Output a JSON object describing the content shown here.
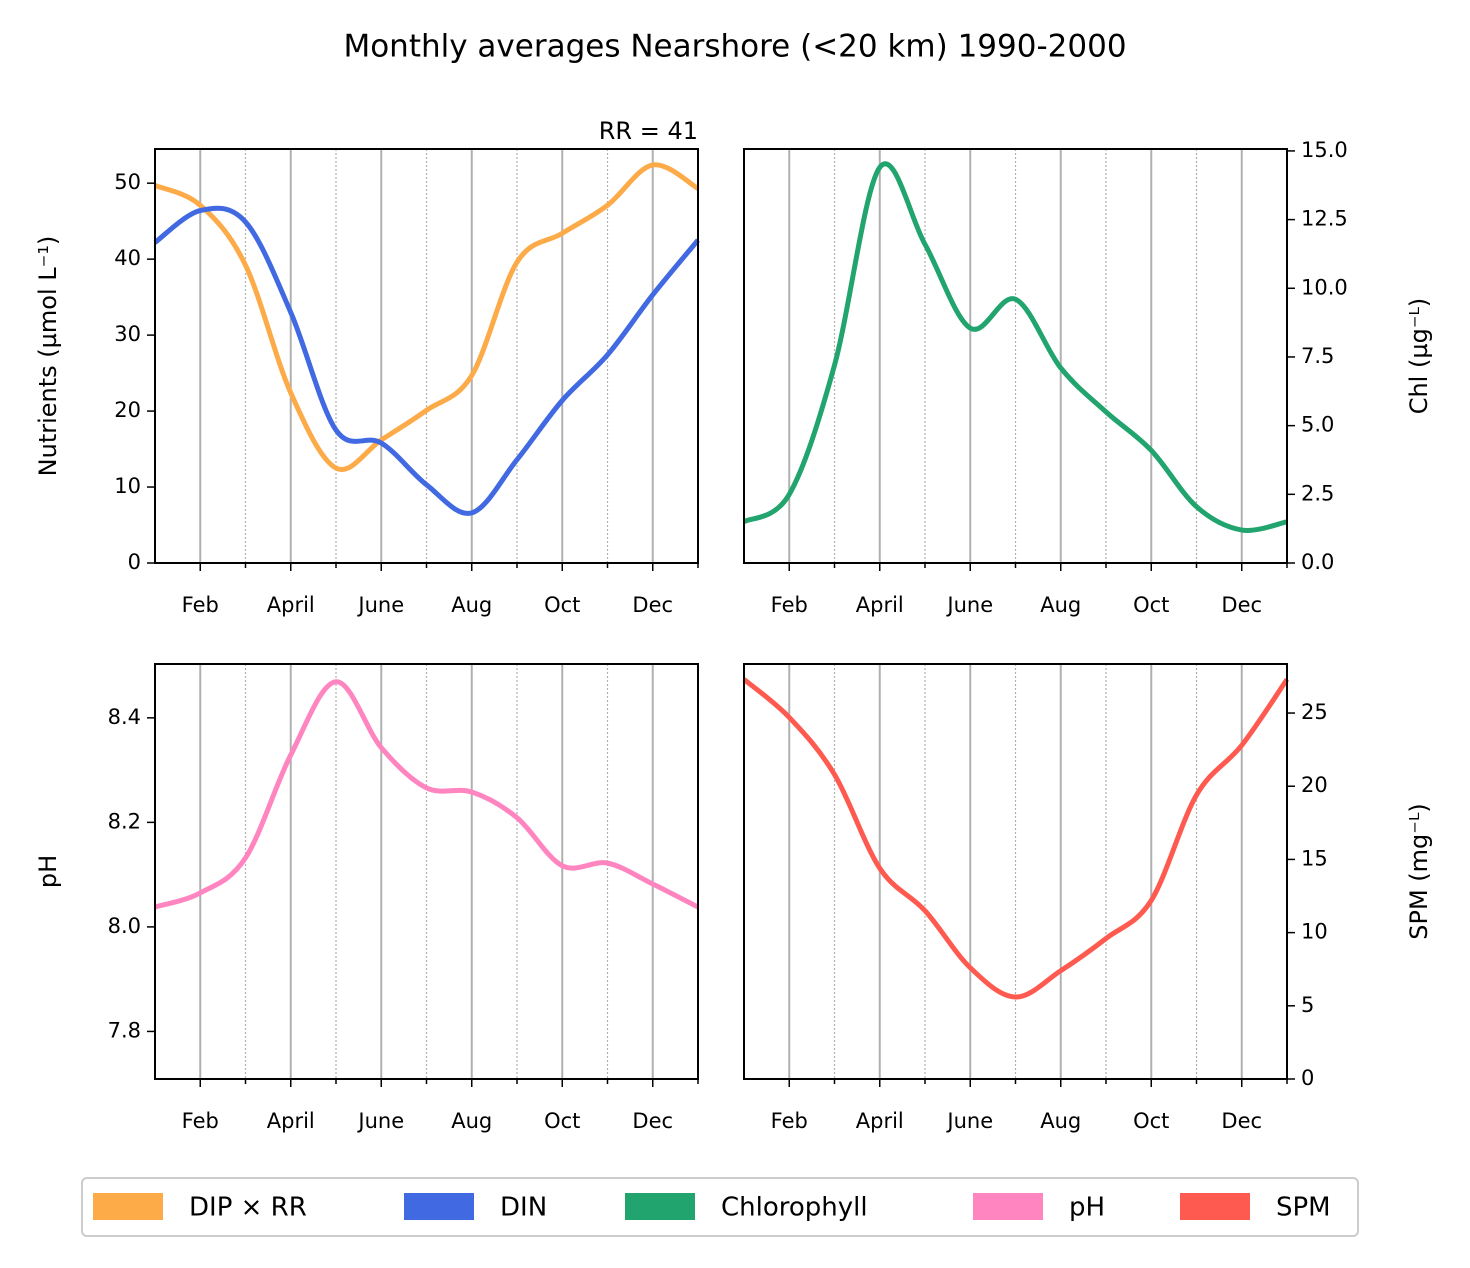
{
  "title": "Monthly averages Nearshore (<20 km) 1990-2000",
  "legend": {
    "loc": "lower center"
  },
  "chart_data": [
    {
      "type": "line",
      "annotation": "RR = 41",
      "ylabel": "Nutrients (µmol L⁻¹)",
      "yaxis_side": "left",
      "grid": "x",
      "x": [
        1,
        2,
        3,
        4,
        5,
        6,
        7,
        8,
        9,
        10,
        11,
        12,
        13
      ],
      "xlim": [
        1,
        13
      ],
      "xticks": [
        {
          "value": 2,
          "label": "Feb"
        },
        {
          "value": 4,
          "label": "April"
        },
        {
          "value": 6,
          "label": "June"
        },
        {
          "value": 8,
          "label": "Aug"
        },
        {
          "value": 10,
          "label": "Oct"
        },
        {
          "value": 12,
          "label": "Dec"
        }
      ],
      "xminorticks": [
        3,
        5,
        7,
        9,
        11,
        13
      ],
      "ylim": [
        0,
        54.5
      ],
      "yticks": [
        0,
        10,
        20,
        30,
        40,
        50
      ],
      "series": [
        {
          "name": "DIP × RR",
          "color": "#fdaa48",
          "values": [
            49.7,
            47.1,
            39.2,
            22.4,
            12.5,
            16.2,
            20.1,
            24.7,
            39.6,
            43.4,
            47.1,
            52.4,
            49.3
          ]
        },
        {
          "name": "DIN",
          "color": "#4169e1",
          "values": [
            42.2,
            46.4,
            44.9,
            33.0,
            17.5,
            15.8,
            10.3,
            6.6,
            13.6,
            21.4,
            27.4,
            35.3,
            42.5
          ]
        }
      ]
    },
    {
      "type": "line",
      "ylabel": "Chl (µg⁻ᴸ)",
      "yaxis_side": "right",
      "grid": "x",
      "x": [
        1,
        2,
        3,
        4,
        5,
        6,
        7,
        8,
        9,
        10,
        11,
        12,
        13
      ],
      "xlim": [
        1,
        13
      ],
      "xticks": [
        {
          "value": 2,
          "label": "Feb"
        },
        {
          "value": 4,
          "label": "April"
        },
        {
          "value": 6,
          "label": "June"
        },
        {
          "value": 8,
          "label": "Aug"
        },
        {
          "value": 10,
          "label": "Oct"
        },
        {
          "value": 12,
          "label": "Dec"
        }
      ],
      "xminorticks": [
        3,
        5,
        7,
        9,
        11,
        13
      ],
      "ylim": [
        0,
        15.07
      ],
      "yticks": [
        {
          "value": 0,
          "label": "0.0"
        },
        2.5,
        {
          "value": 5,
          "label": "5.0"
        },
        7.5,
        {
          "value": 10,
          "label": "10.0"
        },
        12.5,
        {
          "value": 15,
          "label": "15.0"
        }
      ],
      "series": [
        {
          "name": "Chlorophyll",
          "color": "#21a46e",
          "values": [
            1.5,
            2.5,
            7.2,
            14.4,
            11.6,
            8.55,
            9.6,
            7.1,
            5.5,
            4.1,
            2.05,
            1.2,
            1.5
          ]
        }
      ]
    },
    {
      "type": "line",
      "ylabel": "pH",
      "yaxis_side": "left",
      "grid": "x",
      "x": [
        1,
        2,
        3,
        4,
        5,
        6,
        7,
        8,
        9,
        10,
        11,
        12,
        13
      ],
      "xlim": [
        1,
        13
      ],
      "xticks": [
        {
          "value": 2,
          "label": "Feb"
        },
        {
          "value": 4,
          "label": "April"
        },
        {
          "value": 6,
          "label": "June"
        },
        {
          "value": 8,
          "label": "Aug"
        },
        {
          "value": 10,
          "label": "Oct"
        },
        {
          "value": 12,
          "label": "Dec"
        }
      ],
      "xminorticks": [
        3,
        5,
        7,
        9,
        11,
        13
      ],
      "ylim": [
        7.709,
        8.503
      ],
      "yticks": [
        7.8,
        {
          "value": 8,
          "label": "8.0"
        },
        8.2,
        8.4
      ],
      "series": [
        {
          "name": "pH",
          "color": "#ff85c0",
          "values": [
            8.038,
            8.065,
            8.132,
            8.329,
            8.469,
            8.343,
            8.266,
            8.258,
            8.209,
            8.117,
            8.122,
            8.082,
            8.038
          ]
        }
      ]
    },
    {
      "type": "line",
      "ylabel": "SPM (mg⁻ᴸ)",
      "yaxis_side": "right",
      "grid": "x",
      "x": [
        1,
        2,
        3,
        4,
        5,
        6,
        7,
        8,
        9,
        10,
        11,
        12,
        13
      ],
      "xlim": [
        1,
        13
      ],
      "xticks": [
        {
          "value": 2,
          "label": "Feb"
        },
        {
          "value": 4,
          "label": "April"
        },
        {
          "value": 6,
          "label": "June"
        },
        {
          "value": 8,
          "label": "Aug"
        },
        {
          "value": 10,
          "label": "Oct"
        },
        {
          "value": 12,
          "label": "Dec"
        }
      ],
      "xminorticks": [
        3,
        5,
        7,
        9,
        11,
        13
      ],
      "ylim": [
        0,
        28.35
      ],
      "yticks": [
        0,
        5,
        10,
        15,
        20,
        25
      ],
      "series": [
        {
          "name": "SPM",
          "color": "#ff5a50",
          "values": [
            27.3,
            24.7,
            20.8,
            14.4,
            11.5,
            7.6,
            5.6,
            7.4,
            9.6,
            12.2,
            19.4,
            22.8,
            27.3
          ]
        }
      ]
    }
  ]
}
